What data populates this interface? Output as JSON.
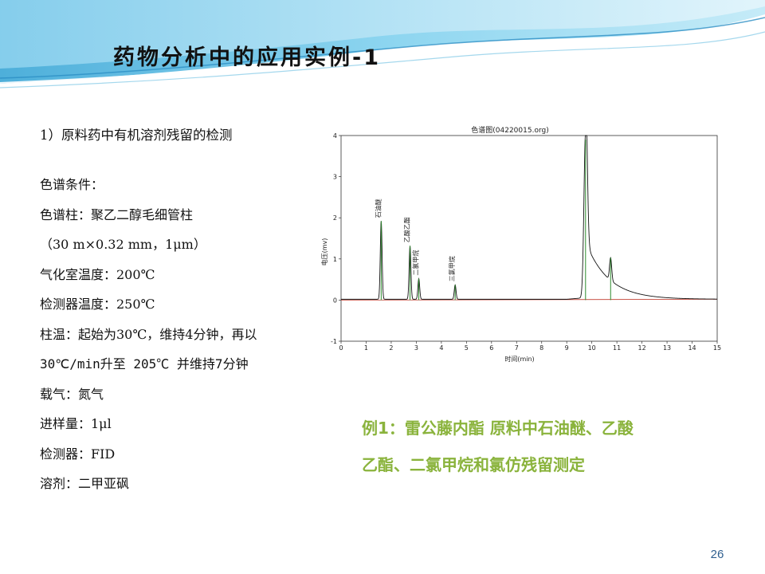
{
  "slide": {
    "title": "药物分析中的应用实例-1",
    "subtitle": "1）原料药中有机溶剂残留的检测",
    "conditions": [
      "色谱条件：",
      "色谱柱：聚乙二醇毛细管柱",
      "（30 m×0.32 mm，1μm）",
      "气化室温度：200℃",
      "检测器温度：250℃",
      "柱温：起始为30℃，维持4分钟，再以",
      "30℃/min升至 205℃ 并维持7分钟",
      "载气：氮气",
      "进样量：1μl",
      "检测器：FID",
      "溶剂：二甲亚砜"
    ],
    "example_lines": [
      "例1：雷公藤内酯 原料中石油醚、乙酸",
      "乙酯、二氯甲烷和氯仿残留测定"
    ],
    "page_number": "26"
  },
  "chart_data": {
    "type": "line",
    "title": "色谱图(04220015.org)",
    "xlabel": "时间(min)",
    "ylabel": "电压(mv)",
    "xlim": [
      0,
      15
    ],
    "ylim": [
      -1,
      4
    ],
    "x_ticks": [
      "0",
      "1",
      "2",
      "3",
      "4",
      "5",
      "6",
      "7",
      "8",
      "9",
      "10",
      "11",
      "12",
      "13",
      "14",
      "15"
    ],
    "y_ticks": [
      "-1",
      "0",
      "1",
      "2",
      "3",
      "4"
    ],
    "peaks": [
      {
        "label": "石油醚",
        "x": 1.6,
        "height": 1.9
      },
      {
        "label": "乙酸乙酯",
        "x": 2.75,
        "height": 1.3
      },
      {
        "label": "二氯甲烷",
        "x": 3.1,
        "height": 0.5
      },
      {
        "label": "三氯甲烷",
        "x": 4.55,
        "height": 0.35
      },
      {
        "label": "",
        "x": 9.75,
        "height": 4.0
      },
      {
        "label": "",
        "x": 10.75,
        "height": 0.55
      }
    ],
    "colors": {
      "trace": "#111111",
      "baseline": "#c0392b",
      "marker": "#2e8b2e"
    }
  }
}
